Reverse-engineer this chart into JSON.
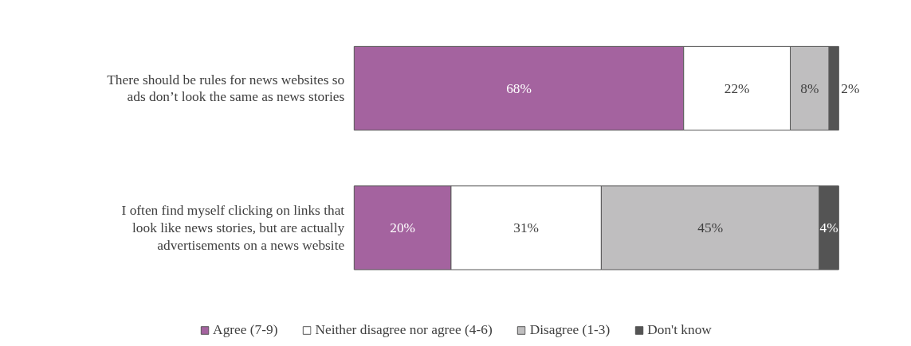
{
  "chart_data": {
    "type": "bar",
    "orientation": "horizontal",
    "stacked": true,
    "legend": "bottom",
    "categories": [
      "There should be rules for news websites so ads don’t look the same as news stories",
      "I often find myself clicking on links that look like news stories, but are actually advertisements on a news website"
    ],
    "series": [
      {
        "name": "Agree (7-9)",
        "color": "#a4639f",
        "values": [
          68,
          20
        ],
        "value_labels": [
          "68%",
          "20%"
        ]
      },
      {
        "name": "Neither disagree nor agree (4-6)",
        "color": "#ffffff",
        "values": [
          22,
          31
        ],
        "value_labels": [
          "22%",
          "31%"
        ]
      },
      {
        "name": "Disagree (1-3)",
        "color": "#bfbebf",
        "values": [
          8,
          45
        ],
        "value_labels": [
          "8%",
          "45%"
        ]
      },
      {
        "name": "Don't know",
        "color": "#545454",
        "values": [
          2,
          4
        ],
        "value_labels": [
          "2%",
          "4%"
        ]
      }
    ]
  }
}
